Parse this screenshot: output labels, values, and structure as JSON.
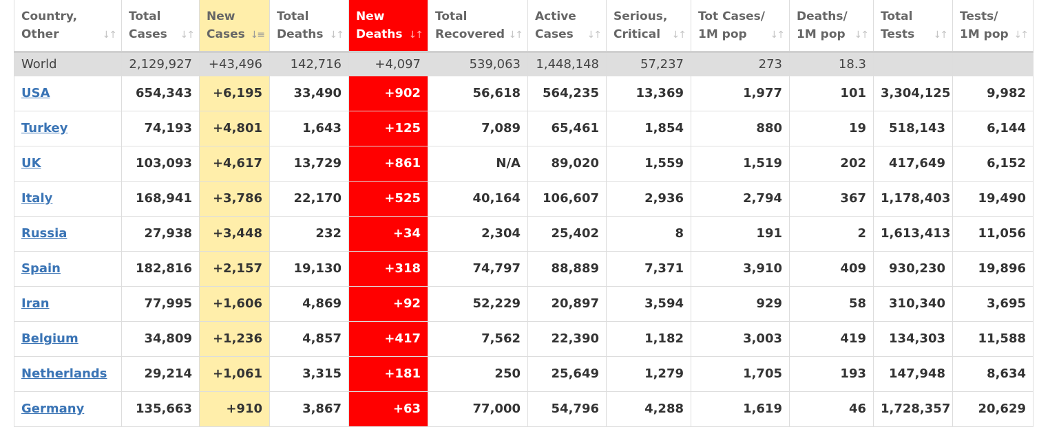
{
  "table": {
    "columns": [
      {
        "line1": "Country,",
        "line2": "Other"
      },
      {
        "line1": "Total",
        "line2": "Cases"
      },
      {
        "line1": "New",
        "line2": "Cases"
      },
      {
        "line1": "Total",
        "line2": "Deaths"
      },
      {
        "line1": "New",
        "line2": "Deaths"
      },
      {
        "line1": "Total",
        "line2": "Recovered"
      },
      {
        "line1": "Active",
        "line2": "Cases"
      },
      {
        "line1": "Serious,",
        "line2": "Critical"
      },
      {
        "line1": "Tot Cases/",
        "line2": "1M pop"
      },
      {
        "line1": "Deaths/",
        "line2": "1M pop"
      },
      {
        "line1": "Total",
        "line2": "Tests"
      },
      {
        "line1": "Tests/",
        "line2": "1M pop"
      }
    ],
    "sort_icon": "sort-icon",
    "active_sort_icon": "sort-descending-icon",
    "world": [
      "World",
      "2,129,927",
      "+43,496",
      "142,716",
      "+4,097",
      "539,063",
      "1,448,148",
      "57,237",
      "273",
      "18.3",
      "",
      ""
    ],
    "rows": [
      [
        "USA",
        "654,343",
        "+6,195",
        "33,490",
        "+902",
        "56,618",
        "564,235",
        "13,369",
        "1,977",
        "101",
        "3,304,125",
        "9,982"
      ],
      [
        "Turkey",
        "74,193",
        "+4,801",
        "1,643",
        "+125",
        "7,089",
        "65,461",
        "1,854",
        "880",
        "19",
        "518,143",
        "6,144"
      ],
      [
        "UK",
        "103,093",
        "+4,617",
        "13,729",
        "+861",
        "N/A",
        "89,020",
        "1,559",
        "1,519",
        "202",
        "417,649",
        "6,152"
      ],
      [
        "Italy",
        "168,941",
        "+3,786",
        "22,170",
        "+525",
        "40,164",
        "106,607",
        "2,936",
        "2,794",
        "367",
        "1,178,403",
        "19,490"
      ],
      [
        "Russia",
        "27,938",
        "+3,448",
        "232",
        "+34",
        "2,304",
        "25,402",
        "8",
        "191",
        "2",
        "1,613,413",
        "11,056"
      ],
      [
        "Spain",
        "182,816",
        "+2,157",
        "19,130",
        "+318",
        "74,797",
        "88,889",
        "7,371",
        "3,910",
        "409",
        "930,230",
        "19,896"
      ],
      [
        "Iran",
        "77,995",
        "+1,606",
        "4,869",
        "+92",
        "52,229",
        "20,897",
        "3,594",
        "929",
        "58",
        "310,340",
        "3,695"
      ],
      [
        "Belgium",
        "34,809",
        "+1,236",
        "4,857",
        "+417",
        "7,562",
        "22,390",
        "1,182",
        "3,003",
        "419",
        "134,303",
        "11,588"
      ],
      [
        "Netherlands",
        "29,214",
        "+1,061",
        "3,315",
        "+181",
        "250",
        "25,649",
        "1,279",
        "1,705",
        "193",
        "147,948",
        "8,634"
      ],
      [
        "Germany",
        "135,663",
        "+910",
        "3,867",
        "+63",
        "77,000",
        "54,796",
        "4,288",
        "1,619",
        "46",
        "1,728,357",
        "20,629"
      ]
    ],
    "colors": {
      "new_cases_bg": "#ffeeaa",
      "new_deaths_bg": "#ff0000",
      "world_bg": "#dedede",
      "link": "#3a74b5"
    }
  }
}
